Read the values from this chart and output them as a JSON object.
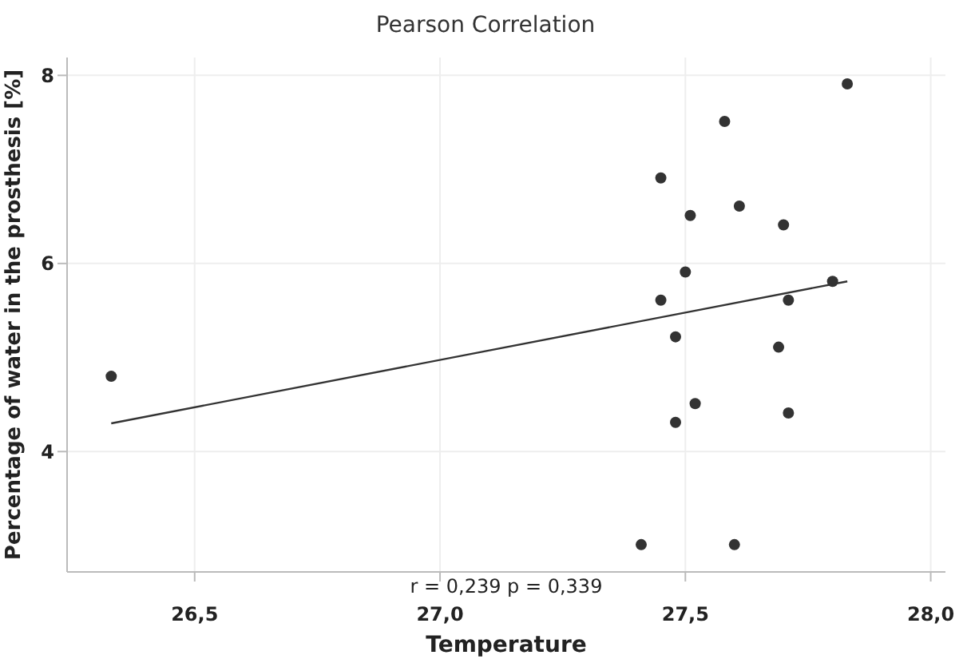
{
  "chart_data": {
    "type": "scatter",
    "title": "Pearson Correlation",
    "xlabel": "Temperature",
    "ylabel": "Percentage of water in the prosthesis [%]",
    "xlim": [
      26.24,
      28.03
    ],
    "xticks": [
      {
        "value": 26.5,
        "label": "26,5"
      },
      {
        "value": 27,
        "label": "27,0"
      },
      {
        "value": 27.5,
        "label": "27,5"
      },
      {
        "value": 28,
        "label": "28,0"
      }
    ],
    "ylim": [
      2.72,
      8.19
    ],
    "yticks": [
      4,
      6,
      8
    ],
    "grid": true,
    "annotations": [
      "r = 0,239  p = 0,339"
    ],
    "series": [
      {
        "marker": "circle",
        "color": "#333333",
        "x": [
          26.33,
          27.83,
          27.58,
          27.45,
          27.51,
          27.61,
          27.7,
          27.5,
          27.8,
          27.45,
          27.71,
          27.48,
          27.69,
          27.52,
          27.48,
          27.71,
          27.41,
          27.6
        ],
        "values": [
          4.8,
          7.91,
          7.51,
          6.91,
          6.51,
          6.61,
          6.41,
          5.91,
          5.81,
          5.61,
          5.61,
          5.22,
          5.11,
          4.51,
          4.31,
          4.41,
          3.01,
          3.01
        ]
      },
      {
        "type": "line",
        "color": "#333333",
        "x": [
          26.33,
          27.83
        ],
        "values": [
          4.3,
          5.81
        ]
      }
    ]
  }
}
